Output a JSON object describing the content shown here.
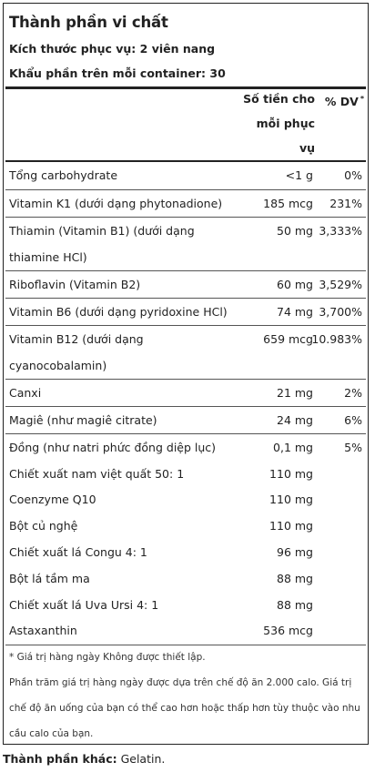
{
  "title": "Thành phần vi chất",
  "serving_size": "Kích thước phục vụ: 2 viên nang",
  "servings_per_container": "Khẩu phần trên mỗi container: 30",
  "header": {
    "amount_line1": "Số tiền cho",
    "amount_line2": "mỗi phục",
    "amount_line3": "vụ",
    "dv": "% DV",
    "dv_mark": "*"
  },
  "rows": [
    {
      "name": "Tổng carbohydrate",
      "amount": "<1 g",
      "dv": "0%"
    },
    {
      "name": "Vitamin K1 (dưới dạng phytonadione)",
      "amount": "185 mcg",
      "dv": "231%"
    },
    {
      "name": "Thiamin (Vitamin B1) (dưới dạng thiamine HCl)",
      "amount": "50 mg",
      "dv": "3,333%"
    },
    {
      "name": "Riboflavin (Vitamin B2)",
      "amount": "60 mg",
      "dv": "3,529%"
    },
    {
      "name": "Vitamin B6 (dưới dạng pyridoxine HCl)",
      "amount": "74 mg",
      "dv": "3,700%"
    },
    {
      "name": "Vitamin B12 (dưới dạng cyanocobalamin)",
      "amount": "659 mcg",
      "dv": "10.983%"
    },
    {
      "name": "Canxi",
      "amount": "21 mg",
      "dv": "2%"
    },
    {
      "name": "Magiê (như magiê citrate)",
      "amount": "24 mg",
      "dv": "6%"
    },
    {
      "name": "Đồng (như natri phức đồng diệp lục)",
      "amount": "0,1 mg",
      "dv": "5%"
    },
    {
      "name": "Chiết xuất nam việt quất 50: 1",
      "amount": "110 mg",
      "dv": ""
    },
    {
      "name": "Coenzyme Q10",
      "amount": "110 mg",
      "dv": ""
    },
    {
      "name": "Bột củ nghệ",
      "amount": "110 mg",
      "dv": ""
    },
    {
      "name": "Chiết xuất lá Congu 4: 1",
      "amount": "96 mg",
      "dv": ""
    },
    {
      "name": "Bột lá tầm ma",
      "amount": "88 mg",
      "dv": ""
    },
    {
      "name": "Chiết xuất lá Uva Ursi 4: 1",
      "amount": "88 mg",
      "dv": ""
    },
    {
      "name": "Astaxanthin",
      "amount": "536 mcg",
      "dv": ""
    }
  ],
  "footnote1": "* Giá trị hàng ngày Không được thiết lập.",
  "footnote2": "Phần trăm giá trị hàng ngày được dựa trên chế độ ăn 2.000 calo. Giá trị chế độ ăn uống của bạn có thể cao hơn hoặc thấp hơn tùy thuộc vào nhu cầu calo của bạn.",
  "other_label": "Thành phần khác:",
  "other_value": " Gelatin."
}
